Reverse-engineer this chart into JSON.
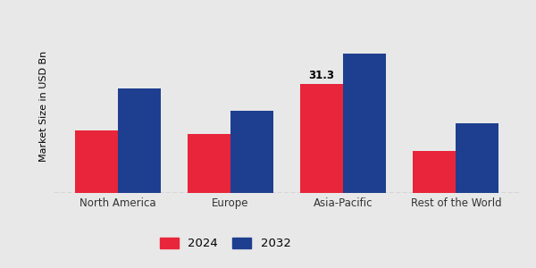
{
  "categories": [
    "North America",
    "Europe",
    "Asia-Pacific",
    "Rest of the World"
  ],
  "values_2024": [
    18,
    17,
    31.3,
    12
  ],
  "values_2032": [
    30,
    23.5,
    40,
    20
  ],
  "bar_color_2024": "#e8253a",
  "bar_color_2032": "#1e3f8f",
  "annotation_value": "31.3",
  "annotation_category_index": 2,
  "ylabel": "Market Size in USD Bn",
  "legend_labels": [
    "2024",
    "2032"
  ],
  "background_color": "#e8e8e8",
  "ylim": [
    0,
    50
  ],
  "bar_width": 0.38
}
